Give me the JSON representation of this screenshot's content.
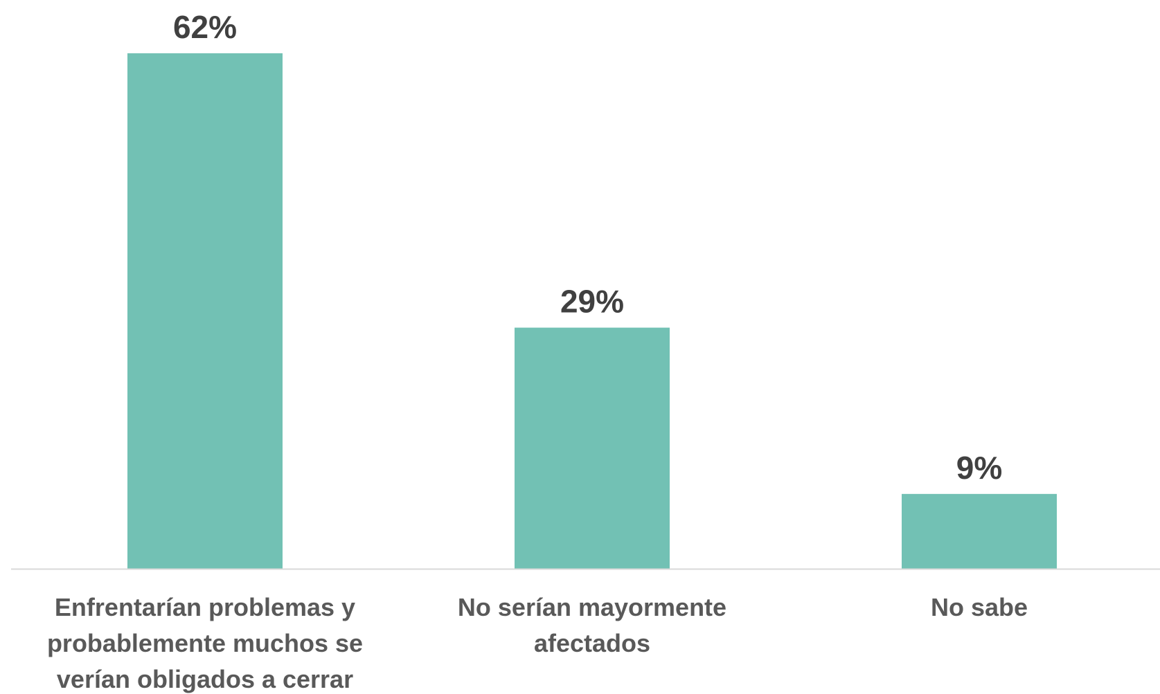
{
  "chart_data": {
    "type": "bar",
    "categories": [
      "Enfrentarían problemas y probablemente muchos se verían obligados a cerrar",
      "No serían mayormente afectados",
      "No sabe"
    ],
    "category_lines": [
      [
        "Enfrentarían problemas y",
        "probablemente muchos se",
        "verían obligados a cerrar"
      ],
      [
        "No serían mayormente",
        "afectados"
      ],
      [
        "No sabe"
      ]
    ],
    "values": [
      62,
      29,
      9
    ],
    "value_labels": [
      "62%",
      "29%",
      "9%"
    ],
    "ylim": [
      0,
      62
    ],
    "grid": false,
    "legend": false,
    "colors": {
      "bar": "#72c1b4",
      "axis": "#d9d9d9",
      "value_text": "#404040",
      "label_text": "#595959"
    }
  }
}
